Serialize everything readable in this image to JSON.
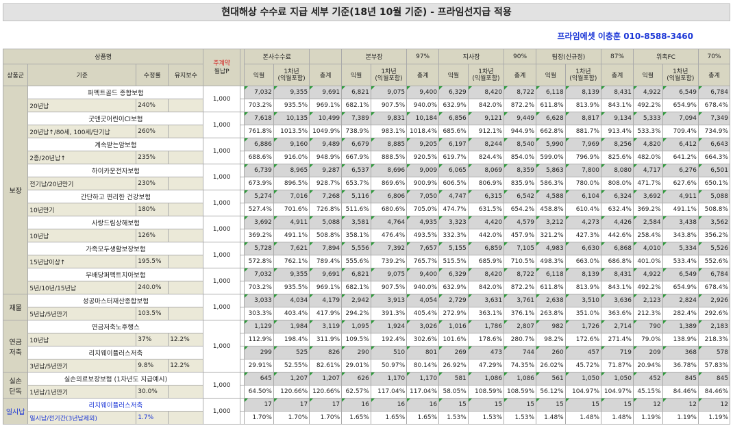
{
  "title": "현대해상 수수료 지급 세부 기준(18년 10월 기준) - 프라임선지급 적용",
  "contact": "프라임에셋 이충훈 010-8588-3460",
  "header": {
    "product_name": "상품명",
    "monthly_top": "주계약",
    "monthly_bottom": "월납P",
    "col_category": "상품군",
    "col_basis": "기준",
    "col_rate": "수정률",
    "col_maint": "유지보수",
    "groups": [
      {
        "name": "본사수수료",
        "pct": ""
      },
      {
        "name": "본부장",
        "pct": "97%"
      },
      {
        "name": "지사장",
        "pct": "90%"
      },
      {
        "name": "팀장(신규정)",
        "pct": "87%"
      },
      {
        "name": "위촉FC",
        "pct": "70%"
      }
    ],
    "sub_month": "익월",
    "sub_year_line1": "1차년",
    "sub_year_line2": "(익월포함)",
    "sub_total": "총계"
  },
  "categories": [
    {
      "name": "보장",
      "blue": false,
      "start": 0,
      "span": 8
    },
    {
      "name": "재물",
      "blue": false,
      "start": 8,
      "span": 1
    },
    {
      "name": "연금\n저축",
      "blue": false,
      "start": 9,
      "span": 2
    },
    {
      "name": "실손\n단독",
      "blue": false,
      "start": 11,
      "span": 1
    },
    {
      "name": "일시납",
      "blue": true,
      "start": 12,
      "span": 1
    }
  ],
  "products": [
    {
      "name": "퍼펙트골드 종합보험",
      "basis": "20년납",
      "rate": "240%",
      "maint": "",
      "monthly": "1,000",
      "mgroup": "a",
      "blue": false,
      "values": [
        "7,032",
        "9,355",
        "9,691",
        "6,821",
        "9,075",
        "9,400",
        "6,329",
        "8,420",
        "8,722",
        "6,118",
        "8,139",
        "8,431",
        "4,922",
        "6,549",
        "6,784"
      ],
      "percents": [
        "703.2%",
        "935.5%",
        "969.1%",
        "682.1%",
        "907.5%",
        "940.0%",
        "632.9%",
        "842.0%",
        "872.2%",
        "611.8%",
        "813.9%",
        "843.1%",
        "492.2%",
        "654.9%",
        "678.4%"
      ]
    },
    {
      "name": "굿앤굿어린이CI보험",
      "basis": "20년납↑/80세, 100세/단기납",
      "rate": "260%",
      "maint": "",
      "monthly": "1,000",
      "mgroup": "a",
      "blue": false,
      "values": [
        "7,618",
        "10,135",
        "10,499",
        "7,389",
        "9,831",
        "10,184",
        "6,856",
        "9,121",
        "9,449",
        "6,628",
        "8,817",
        "9,134",
        "5,333",
        "7,094",
        "7,349"
      ],
      "percents": [
        "761.8%",
        "1013.5%",
        "1049.9%",
        "738.9%",
        "983.1%",
        "1018.4%",
        "685.6%",
        "912.1%",
        "944.9%",
        "662.8%",
        "881.7%",
        "913.4%",
        "533.3%",
        "709.4%",
        "734.9%"
      ]
    },
    {
      "name": "계속받는암보험",
      "basis": "2종/20년납↑",
      "rate": "235%",
      "maint": "",
      "monthly": "1,000",
      "mgroup": "a",
      "blue": false,
      "values": [
        "6,886",
        "9,160",
        "9,489",
        "6,679",
        "8,885",
        "9,205",
        "6,197",
        "8,244",
        "8,540",
        "5,990",
        "7,969",
        "8,256",
        "4,820",
        "6,412",
        "6,643"
      ],
      "percents": [
        "688.6%",
        "916.0%",
        "948.9%",
        "667.9%",
        "888.5%",
        "920.5%",
        "619.7%",
        "824.4%",
        "854.0%",
        "599.0%",
        "796.9%",
        "825.6%",
        "482.0%",
        "641.2%",
        "664.3%"
      ]
    },
    {
      "name": "하이카운전자보험",
      "basis": "전기납/20년만기",
      "rate": "230%",
      "maint": "",
      "monthly": "1,000",
      "mgroup": "a",
      "blue": false,
      "values": [
        "6,739",
        "8,965",
        "9,287",
        "6,537",
        "8,696",
        "9,009",
        "6,065",
        "8,069",
        "8,359",
        "5,863",
        "7,800",
        "8,080",
        "4,717",
        "6,276",
        "6,501"
      ],
      "percents": [
        "673.9%",
        "896.5%",
        "928.7%",
        "653.7%",
        "869.6%",
        "900.9%",
        "606.5%",
        "806.9%",
        "835.9%",
        "586.3%",
        "780.0%",
        "808.0%",
        "471.7%",
        "627.6%",
        "650.1%"
      ]
    },
    {
      "name": "간단하고 편리한 건강보험",
      "basis": "10년만기",
      "rate": "180%",
      "maint": "",
      "monthly": "1,000",
      "mgroup": "a",
      "blue": false,
      "values": [
        "5,274",
        "7,016",
        "7,268",
        "5,116",
        "6,806",
        "7,050",
        "4,747",
        "6,315",
        "6,542",
        "4,588",
        "6,104",
        "6,324",
        "3,692",
        "4,911",
        "5,088"
      ],
      "percents": [
        "527.4%",
        "701.6%",
        "726.8%",
        "511.6%",
        "680.6%",
        "705.0%",
        "474.7%",
        "631.5%",
        "654.2%",
        "458.8%",
        "610.4%",
        "632.4%",
        "369.2%",
        "491.1%",
        "508.8%"
      ]
    },
    {
      "name": "사랑드림상해보험",
      "basis": "10년납",
      "rate": "126%",
      "maint": "",
      "monthly": "1,000",
      "mgroup": "a",
      "blue": false,
      "values": [
        "3,692",
        "4,911",
        "5,088",
        "3,581",
        "4,764",
        "4,935",
        "3,323",
        "4,420",
        "4,579",
        "3,212",
        "4,273",
        "4,426",
        "2,584",
        "3,438",
        "3,562"
      ],
      "percents": [
        "369.2%",
        "491.1%",
        "508.8%",
        "358.1%",
        "476.4%",
        "493.5%",
        "332.3%",
        "442.0%",
        "457.9%",
        "321.2%",
        "427.3%",
        "442.6%",
        "258.4%",
        "343.8%",
        "356.2%"
      ]
    },
    {
      "name": "가족모두생활보장보험",
      "basis": "15년납이상↑",
      "rate": "195.5%",
      "maint": "",
      "monthly": "1,000",
      "mgroup": "a",
      "blue": false,
      "values": [
        "5,728",
        "7,621",
        "7,894",
        "5,556",
        "7,392",
        "7,657",
        "5,155",
        "6,859",
        "7,105",
        "4,983",
        "6,630",
        "6,868",
        "4,010",
        "5,334",
        "5,526"
      ],
      "percents": [
        "572.8%",
        "762.1%",
        "789.4%",
        "555.6%",
        "739.2%",
        "765.7%",
        "515.5%",
        "685.9%",
        "710.5%",
        "498.3%",
        "663.0%",
        "686.8%",
        "401.0%",
        "533.4%",
        "552.6%"
      ]
    },
    {
      "name": "무배당퍼펙트치아보험",
      "basis": "5년/10년/15년납",
      "rate": "240.0%",
      "maint": "",
      "monthly": "1,000",
      "mgroup": "a",
      "blue": false,
      "values": [
        "7,032",
        "9,355",
        "9,691",
        "6,821",
        "9,075",
        "9,400",
        "6,329",
        "8,420",
        "8,722",
        "6,118",
        "8,139",
        "8,431",
        "4,922",
        "6,549",
        "6,784"
      ],
      "percents": [
        "703.2%",
        "935.5%",
        "969.1%",
        "682.1%",
        "907.5%",
        "940.0%",
        "632.9%",
        "842.0%",
        "872.2%",
        "611.8%",
        "813.9%",
        "843.1%",
        "492.2%",
        "654.9%",
        "678.4%"
      ]
    },
    {
      "name": "성공마스터재산종합보험",
      "basis": "5년납/5년만기",
      "rate": "103.5%",
      "maint": "",
      "monthly": "1,000",
      "mgroup": "a",
      "blue": false,
      "values": [
        "3,033",
        "4,034",
        "4,179",
        "2,942",
        "3,913",
        "4,054",
        "2,729",
        "3,631",
        "3,761",
        "2,638",
        "3,510",
        "3,636",
        "2,123",
        "2,824",
        "2,926"
      ],
      "percents": [
        "303.3%",
        "403.4%",
        "417.9%",
        "294.2%",
        "391.3%",
        "405.4%",
        "272.9%",
        "363.1%",
        "376.1%",
        "263.8%",
        "351.0%",
        "363.6%",
        "212.3%",
        "282.4%",
        "292.6%"
      ]
    },
    {
      "name": "연금저축노후행스",
      "basis": "10년납",
      "rate": "37%",
      "maint": "12.2%",
      "monthly": "1,000",
      "mgroup": "start2",
      "blue": false,
      "values": [
        "1,129",
        "1,984",
        "3,119",
        "1,095",
        "1,924",
        "3,026",
        "1,016",
        "1,786",
        "2,807",
        "982",
        "1,726",
        "2,714",
        "790",
        "1,389",
        "2,183"
      ],
      "percents": [
        "112.9%",
        "198.4%",
        "311.9%",
        "109.5%",
        "192.4%",
        "302.6%",
        "101.6%",
        "178.6%",
        "280.7%",
        "98.2%",
        "172.6%",
        "271.4%",
        "79.0%",
        "138.9%",
        "218.3%"
      ]
    },
    {
      "name": "리치웨이플러스저축",
      "basis": "3년납/5년만기",
      "rate": "9.8%",
      "maint": "12.2%",
      "monthly": "1,000",
      "mgroup": "skip",
      "blue": false,
      "values": [
        "299",
        "525",
        "826",
        "290",
        "510",
        "801",
        "269",
        "473",
        "744",
        "260",
        "457",
        "719",
        "209",
        "368",
        "578"
      ],
      "percents": [
        "29.91%",
        "52.55%",
        "82.61%",
        "29.01%",
        "50.97%",
        "80.14%",
        "26.92%",
        "47.29%",
        "74.35%",
        "26.02%",
        "45.72%",
        "71.87%",
        "20.94%",
        "36.78%",
        "57.83%"
      ]
    },
    {
      "name": "실손의료보장보험 (1차년도 지급예시)",
      "basis": "1년납/1년만기",
      "rate": "30.0%",
      "maint": "",
      "monthly": "1,000",
      "mgroup": "a",
      "blue": false,
      "values": [
        "645",
        "1,207",
        "1,207",
        "626",
        "1,170",
        "1,170",
        "581",
        "1,086",
        "1,086",
        "561",
        "1,050",
        "1,050",
        "452",
        "845",
        "845"
      ],
      "percents": [
        "64.50%",
        "120.66%",
        "120.66%",
        "62.57%",
        "117.04%",
        "117.04%",
        "58.05%",
        "108.59%",
        "108.59%",
        "56.12%",
        "104.97%",
        "104.97%",
        "45.15%",
        "84.46%",
        "84.46%"
      ]
    },
    {
      "name": "리치웨이플러스저축",
      "basis": "일시납/전기간(3년납제외)",
      "rate": "1.7%",
      "maint": "",
      "monthly": "1,000",
      "mgroup": "a",
      "blue": true,
      "values": [
        "17",
        "17",
        "17",
        "16",
        "16",
        "16",
        "15",
        "15",
        "15",
        "15",
        "15",
        "15",
        "12",
        "12",
        "12"
      ],
      "percents": [
        "1.70%",
        "1.70%",
        "1.70%",
        "1.65%",
        "1.65%",
        "1.65%",
        "1.53%",
        "1.53%",
        "1.53%",
        "1.48%",
        "1.48%",
        "1.48%",
        "1.19%",
        "1.19%",
        "1.19%"
      ]
    }
  ],
  "colors": {
    "header_bg": "#d8d6c2",
    "sub_bg": "#ebe9d8",
    "value_bg": "#d6d6d6",
    "accent_blue": "#1a35d6",
    "accent_red": "#d21a1a",
    "marker_green": "#2e9b3b"
  }
}
